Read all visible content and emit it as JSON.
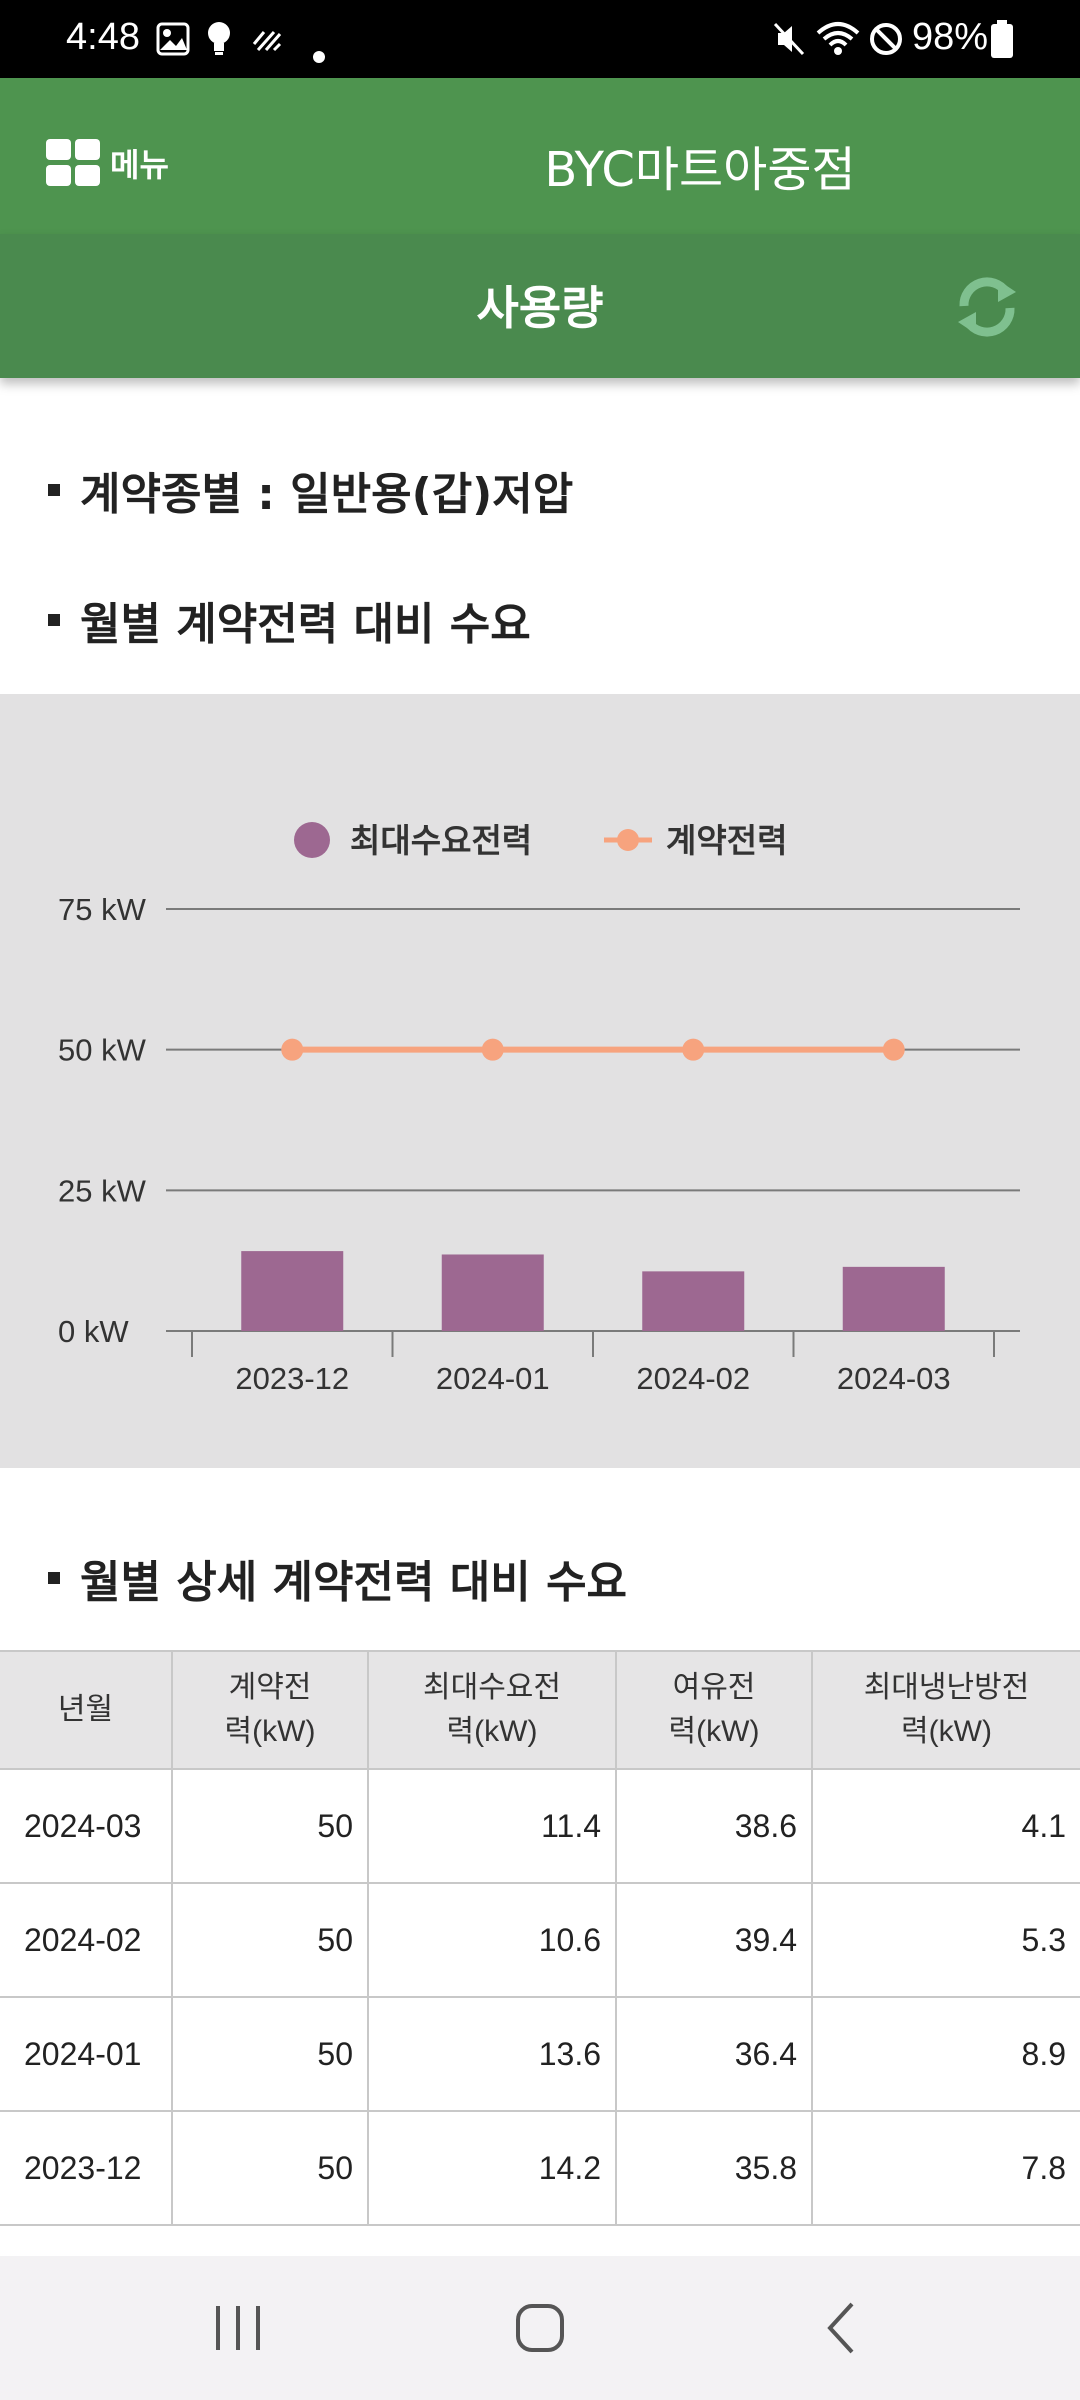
{
  "status_bar": {
    "time": "4:48",
    "battery": "98%",
    "icons": [
      "gallery-icon",
      "bulb-icon",
      "signal-activity-icon",
      "dot-icon",
      "mute-icon",
      "wifi-icon",
      "blocked-icon",
      "battery-icon"
    ]
  },
  "header": {
    "menu_label": "메뉴",
    "title": "BYC마트아중점"
  },
  "subheader": {
    "title": "사용량",
    "refresh_icon": "refresh-icon"
  },
  "sections": {
    "contract_type": "계약종별 : 일반용(갑)저압",
    "monthly_chart_title": "월별 계약전력 대비 수요",
    "monthly_table_title": "월별 상세 계약전력 대비 수요"
  },
  "chart_data": {
    "type": "bar",
    "categories": [
      "2023-12",
      "2024-01",
      "2024-02",
      "2024-03"
    ],
    "series": [
      {
        "name": "최대수요전력",
        "type": "bar",
        "values": [
          14.2,
          13.6,
          10.6,
          11.4
        ],
        "color": "#9d6891"
      },
      {
        "name": "계약전력",
        "type": "line",
        "values": [
          50,
          50,
          50,
          50
        ],
        "color": "#f7a37e"
      }
    ],
    "y_ticks": [
      "0 kW",
      "25 kW",
      "50 kW",
      "75 kW"
    ],
    "ylim": [
      0,
      75
    ],
    "grid": true,
    "legend": "top-center"
  },
  "table": {
    "headers": [
      "년월",
      "계약전력(kW)",
      "최대수요전력(kW)",
      "여유전력(kW)",
      "최대냉난방전력(kW)"
    ],
    "header_lines": [
      [
        "년월"
      ],
      [
        "계약전",
        "력(kW)"
      ],
      [
        "최대수요전",
        "력(kW)"
      ],
      [
        "여유전",
        "력(kW)"
      ],
      [
        "최대냉난방전",
        "력(kW)"
      ]
    ],
    "rows": [
      [
        "2024-03",
        "50",
        "11.4",
        "38.6",
        "4.1"
      ],
      [
        "2024-02",
        "50",
        "10.6",
        "39.4",
        "5.3"
      ],
      [
        "2024-01",
        "50",
        "13.6",
        "36.4",
        "8.9"
      ],
      [
        "2023-12",
        "50",
        "14.2",
        "35.8",
        "7.8"
      ]
    ]
  },
  "nav": {
    "icons": [
      "recent-apps-icon",
      "home-icon",
      "back-icon"
    ]
  },
  "colors": {
    "header_green": "#4e944f",
    "subheader_green": "#4a8a4e",
    "chart_bg": "#e2e1e2"
  }
}
